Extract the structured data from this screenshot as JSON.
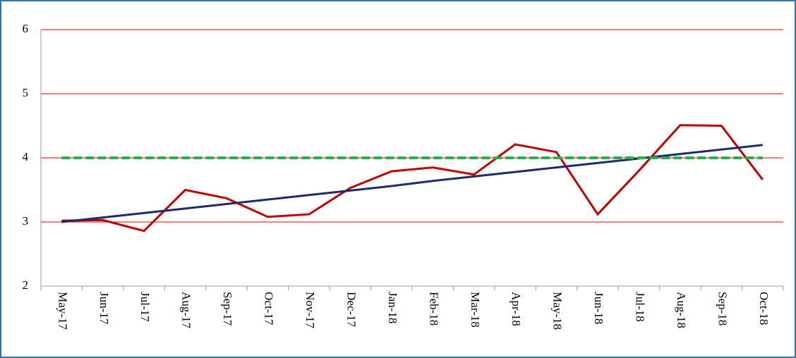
{
  "chart_data": {
    "type": "line",
    "categories": [
      "May-17",
      "Jun-17",
      "Jul-17",
      "Aug-17",
      "Sep-17",
      "Oct-17",
      "Nov-17",
      "Dec-17",
      "Jan-18",
      "Feb-18",
      "Mar-18",
      "Apr-18",
      "May-18",
      "Jun-18",
      "Jul-18",
      "Aug-18",
      "Sep-18",
      "Oct-18"
    ],
    "series": [
      {
        "color": "#c00000",
        "values": [
          3.02,
          3.03,
          2.86,
          3.5,
          3.37,
          3.08,
          3.12,
          3.53,
          3.79,
          3.85,
          3.74,
          4.21,
          4.09,
          3.12,
          3.8,
          4.51,
          4.5,
          3.66
        ]
      },
      {
        "color": "#1f2a6b",
        "values": [
          3.0,
          3.07,
          3.14,
          3.21,
          3.28,
          3.35,
          3.42,
          3.49,
          3.56,
          3.64,
          3.71,
          3.78,
          3.85,
          3.92,
          3.99,
          4.06,
          4.13,
          4.2
        ]
      },
      {
        "color": "#22b14c",
        "dashed": true,
        "values": [
          4,
          4,
          4,
          4,
          4,
          4,
          4,
          4,
          4,
          4,
          4,
          4,
          4,
          4,
          4,
          4,
          4,
          4
        ]
      }
    ],
    "ylim": [
      2,
      6
    ],
    "yticks": [
      2,
      3,
      4,
      5,
      6
    ],
    "grid": true,
    "grid_color": "#e00000"
  }
}
